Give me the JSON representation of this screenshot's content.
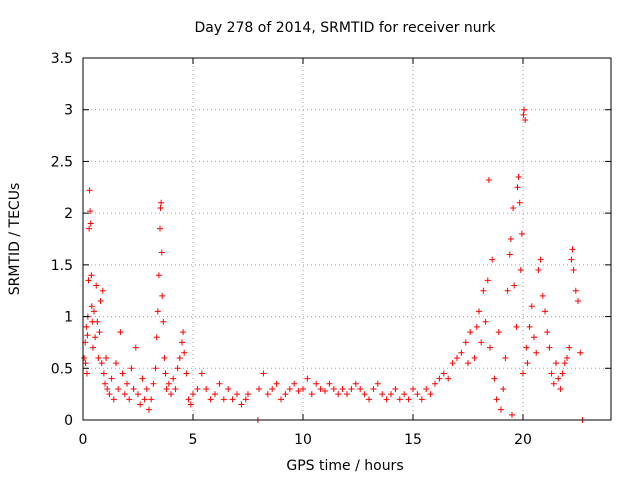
{
  "chart_data": {
    "type": "scatter",
    "title": "Day 278 of 2014, SRMTID for receiver nurk",
    "xlabel": "GPS time / hours",
    "ylabel": "SRMTID / TECUs",
    "xlim": [
      0,
      24
    ],
    "ylim": [
      0,
      3.5
    ],
    "x_ticks": [
      0,
      5,
      10,
      15,
      20
    ],
    "x_tick_labels": [
      "0",
      "5",
      "10",
      "15",
      "20"
    ],
    "y_ticks": [
      0,
      0.5,
      1,
      1.5,
      2,
      2.5,
      3,
      3.5
    ],
    "y_tick_labels": [
      "0",
      "0.5",
      "1",
      "1.5",
      "2",
      "2.5",
      "3",
      "3.5"
    ],
    "grid": true,
    "marker": "+",
    "marker_color": "#ff0000",
    "series": [
      {
        "name": "SRMTID",
        "points": [
          [
            0.05,
            0.6
          ],
          [
            0.1,
            0.75
          ],
          [
            0.12,
            0.55
          ],
          [
            0.15,
            0.9
          ],
          [
            0.18,
            0.45
          ],
          [
            0.2,
            0.82
          ],
          [
            0.22,
            1.0
          ],
          [
            0.25,
            1.35
          ],
          [
            0.28,
            1.85
          ],
          [
            0.3,
            2.22
          ],
          [
            0.32,
            2.02
          ],
          [
            0.35,
            1.9
          ],
          [
            0.38,
            1.4
          ],
          [
            0.4,
            1.1
          ],
          [
            0.42,
            0.95
          ],
          [
            0.45,
            0.7
          ],
          [
            0.5,
            1.05
          ],
          [
            0.55,
            0.8
          ],
          [
            0.6,
            1.3
          ],
          [
            0.65,
            0.95
          ],
          [
            0.7,
            0.6
          ],
          [
            0.75,
            0.85
          ],
          [
            0.8,
            1.15
          ],
          [
            0.85,
            0.55
          ],
          [
            0.9,
            1.25
          ],
          [
            0.95,
            0.45
          ],
          [
            1.0,
            0.35
          ],
          [
            1.05,
            0.6
          ],
          [
            1.1,
            0.3
          ],
          [
            1.2,
            0.25
          ],
          [
            1.3,
            0.4
          ],
          [
            1.4,
            0.2
          ],
          [
            1.5,
            0.55
          ],
          [
            1.6,
            0.3
          ],
          [
            1.7,
            0.85
          ],
          [
            1.8,
            0.45
          ],
          [
            1.9,
            0.25
          ],
          [
            2.0,
            0.35
          ],
          [
            2.1,
            0.2
          ],
          [
            2.2,
            0.5
          ],
          [
            2.3,
            0.3
          ],
          [
            2.4,
            0.7
          ],
          [
            2.5,
            0.25
          ],
          [
            2.6,
            0.15
          ],
          [
            2.7,
            0.4
          ],
          [
            2.8,
            0.2
          ],
          [
            2.9,
            0.3
          ],
          [
            3.0,
            0.1
          ],
          [
            3.1,
            0.2
          ],
          [
            3.2,
            0.35
          ],
          [
            3.3,
            0.5
          ],
          [
            3.35,
            0.8
          ],
          [
            3.4,
            1.05
          ],
          [
            3.45,
            1.4
          ],
          [
            3.5,
            1.85
          ],
          [
            3.52,
            2.05
          ],
          [
            3.55,
            2.1
          ],
          [
            3.58,
            1.62
          ],
          [
            3.6,
            1.2
          ],
          [
            3.65,
            0.95
          ],
          [
            3.7,
            0.6
          ],
          [
            3.75,
            0.45
          ],
          [
            3.8,
            0.3
          ],
          [
            3.9,
            0.35
          ],
          [
            4.0,
            0.25
          ],
          [
            4.1,
            0.4
          ],
          [
            4.2,
            0.3
          ],
          [
            4.3,
            0.5
          ],
          [
            4.4,
            0.6
          ],
          [
            4.5,
            0.75
          ],
          [
            4.55,
            0.85
          ],
          [
            4.6,
            0.65
          ],
          [
            4.7,
            0.45
          ],
          [
            4.8,
            0.2
          ],
          [
            4.9,
            0.15
          ],
          [
            5.0,
            0.25
          ],
          [
            5.2,
            0.3
          ],
          [
            5.4,
            0.45
          ],
          [
            5.6,
            0.3
          ],
          [
            5.8,
            0.2
          ],
          [
            6.0,
            0.25
          ],
          [
            6.2,
            0.35
          ],
          [
            6.4,
            0.2
          ],
          [
            6.6,
            0.3
          ],
          [
            6.8,
            0.2
          ],
          [
            7.0,
            0.25
          ],
          [
            7.2,
            0.15
          ],
          [
            7.4,
            0.2
          ],
          [
            7.5,
            0.25
          ],
          [
            7.95,
            0.0
          ],
          [
            8.0,
            0.3
          ],
          [
            8.2,
            0.45
          ],
          [
            8.4,
            0.25
          ],
          [
            8.6,
            0.3
          ],
          [
            8.8,
            0.35
          ],
          [
            9.0,
            0.2
          ],
          [
            9.2,
            0.25
          ],
          [
            9.4,
            0.3
          ],
          [
            9.6,
            0.35
          ],
          [
            9.8,
            0.28
          ],
          [
            10.0,
            0.3
          ],
          [
            10.2,
            0.4
          ],
          [
            10.4,
            0.25
          ],
          [
            10.6,
            0.35
          ],
          [
            10.8,
            0.3
          ],
          [
            11.0,
            0.28
          ],
          [
            11.2,
            0.35
          ],
          [
            11.4,
            0.3
          ],
          [
            11.6,
            0.25
          ],
          [
            11.8,
            0.3
          ],
          [
            12.0,
            0.25
          ],
          [
            12.2,
            0.3
          ],
          [
            12.4,
            0.35
          ],
          [
            12.6,
            0.3
          ],
          [
            12.8,
            0.25
          ],
          [
            13.0,
            0.2
          ],
          [
            13.2,
            0.3
          ],
          [
            13.4,
            0.35
          ],
          [
            13.6,
            0.25
          ],
          [
            13.8,
            0.2
          ],
          [
            14.0,
            0.25
          ],
          [
            14.2,
            0.3
          ],
          [
            14.4,
            0.2
          ],
          [
            14.6,
            0.25
          ],
          [
            14.8,
            0.2
          ],
          [
            15.0,
            0.3
          ],
          [
            15.2,
            0.25
          ],
          [
            15.4,
            0.2
          ],
          [
            15.6,
            0.3
          ],
          [
            15.8,
            0.25
          ],
          [
            16.0,
            0.35
          ],
          [
            16.2,
            0.4
          ],
          [
            16.4,
            0.45
          ],
          [
            16.6,
            0.4
          ],
          [
            16.8,
            0.55
          ],
          [
            17.0,
            0.6
          ],
          [
            17.2,
            0.65
          ],
          [
            17.4,
            0.75
          ],
          [
            17.5,
            0.55
          ],
          [
            17.6,
            0.85
          ],
          [
            17.8,
            0.6
          ],
          [
            17.9,
            0.9
          ],
          [
            18.0,
            1.05
          ],
          [
            18.1,
            0.75
          ],
          [
            18.2,
            1.25
          ],
          [
            18.3,
            0.95
          ],
          [
            18.4,
            1.35
          ],
          [
            18.45,
            2.32
          ],
          [
            18.5,
            0.7
          ],
          [
            18.6,
            1.55
          ],
          [
            18.7,
            0.4
          ],
          [
            18.8,
            0.2
          ],
          [
            18.9,
            0.85
          ],
          [
            19.0,
            0.1
          ],
          [
            19.1,
            0.3
          ],
          [
            19.2,
            0.6
          ],
          [
            19.3,
            1.25
          ],
          [
            19.4,
            1.6
          ],
          [
            19.45,
            1.75
          ],
          [
            19.5,
            0.05
          ],
          [
            19.55,
            2.05
          ],
          [
            19.6,
            1.3
          ],
          [
            19.7,
            0.9
          ],
          [
            19.75,
            2.25
          ],
          [
            19.8,
            2.35
          ],
          [
            19.85,
            2.1
          ],
          [
            19.9,
            1.45
          ],
          [
            19.95,
            1.8
          ],
          [
            20.0,
            0.45
          ],
          [
            20.02,
            2.95
          ],
          [
            20.05,
            3.0
          ],
          [
            20.1,
            2.9
          ],
          [
            20.15,
            0.7
          ],
          [
            20.2,
            0.55
          ],
          [
            20.3,
            0.9
          ],
          [
            20.4,
            1.1
          ],
          [
            20.5,
            0.8
          ],
          [
            20.6,
            0.65
          ],
          [
            20.7,
            1.45
          ],
          [
            20.8,
            1.55
          ],
          [
            20.9,
            1.2
          ],
          [
            21.0,
            1.05
          ],
          [
            21.1,
            0.85
          ],
          [
            21.2,
            0.7
          ],
          [
            21.3,
            0.45
          ],
          [
            21.4,
            0.35
          ],
          [
            21.5,
            0.55
          ],
          [
            21.6,
            0.4
          ],
          [
            21.7,
            0.3
          ],
          [
            21.8,
            0.45
          ],
          [
            21.9,
            0.55
          ],
          [
            22.0,
            0.6
          ],
          [
            22.1,
            0.7
          ],
          [
            22.2,
            1.55
          ],
          [
            22.25,
            1.65
          ],
          [
            22.3,
            1.45
          ],
          [
            22.4,
            1.25
          ],
          [
            22.5,
            1.15
          ],
          [
            22.6,
            0.65
          ],
          [
            22.7,
            0.0
          ]
        ]
      }
    ]
  }
}
